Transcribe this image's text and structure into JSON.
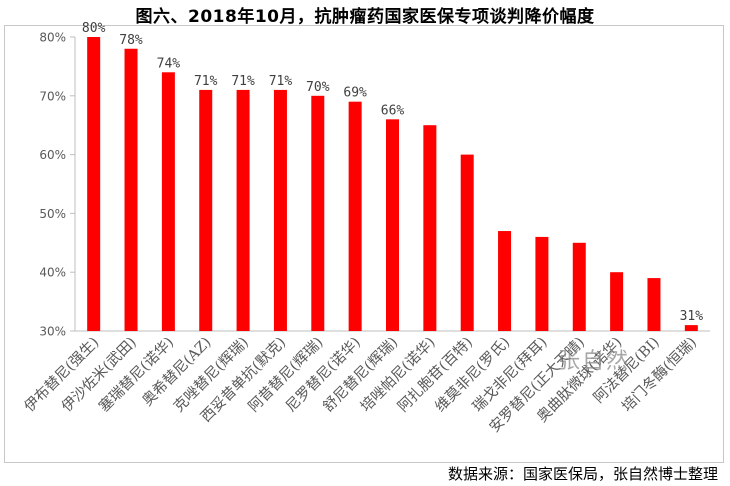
{
  "title": "图六、2018年10月，抗肿瘤药国家医保专项谈判降价幅度",
  "source": "数据来源：国家医保局，张自然博士整理",
  "watermark": "张自然",
  "colors": {
    "bar": "#ff0000",
    "axis": "#bfbfbf",
    "text": "#595959"
  },
  "chart_data": {
    "type": "bar",
    "title": "图六、2018年10月，抗肿瘤药国家医保专项谈判降价幅度",
    "xlabel": "",
    "ylabel": "",
    "ylim": [
      30,
      80
    ],
    "yticks": [
      "30%",
      "40%",
      "50%",
      "60%",
      "70%",
      "80%"
    ],
    "ytick_values": [
      30,
      40,
      50,
      60,
      70,
      80
    ],
    "grid": false,
    "legend": "none",
    "categories": [
      "伊布替尼(强生)",
      "伊沙佐米(武田)",
      "塞瑞替尼(诺华)",
      "奥希替尼(AZ)",
      "克唑替尼(辉瑞)",
      "西妥昔单抗(默克)",
      "阿昔替尼(辉瑞)",
      "尼罗替尼(诺华)",
      "舒尼替尼(辉瑞)",
      "培唑帕尼(诺华)",
      "阿扎胞苷(百特)",
      "维莫非尼(罗氏)",
      "瑞戈非尼(拜耳)",
      "安罗替尼(正大天晴)",
      "奥曲肽微球(诺华)",
      "阿法替尼(BI)",
      "培门冬酶(恒瑞)"
    ],
    "values": [
      80,
      78,
      74,
      71,
      71,
      71,
      70,
      69,
      66,
      65,
      60,
      47,
      46,
      45,
      40,
      39,
      31
    ],
    "data_labels": [
      "80%",
      "78%",
      "74%",
      "71%",
      "71%",
      "71%",
      "70%",
      "69%",
      "66%",
      "",
      "",
      "",
      "",
      "",
      "",
      "",
      "31%"
    ]
  }
}
